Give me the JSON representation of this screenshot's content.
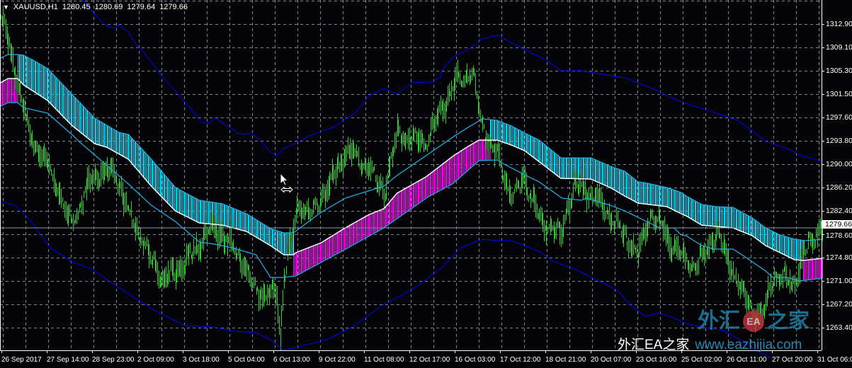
{
  "header": {
    "menu_icon": "triangle-down-icon",
    "symbol": "XAUUSD,H1",
    "open": "1280.45",
    "high": "1280.69",
    "low": "1279.64",
    "close": "1279.66"
  },
  "price_axis": {
    "labels": [
      "1312.90",
      "1309.10",
      "1305.30",
      "1301.50",
      "1297.60",
      "1293.80",
      "1290.00",
      "1286.20",
      "1282.40",
      "1278.60",
      "1274.80",
      "1271.00",
      "1267.20",
      "1263.40"
    ],
    "current_price": "1279.66"
  },
  "time_axis": {
    "labels": [
      "26 Sep 2017",
      "27 Sep 14:00",
      "28 Sep 23:00",
      "2 Oct 09:00",
      "3 Oct 18:00",
      "5 Oct 04:00",
      "6 Oct 13:00",
      "9 Oct 22:00",
      "11 Oct 08:00",
      "12 Oct 17:00",
      "16 Oct 03:00",
      "17 Oct 12:00",
      "18 Oct 21:00",
      "20 Oct 07:00",
      "23 Oct 16:00",
      "25 Oct 02:00",
      "26 Oct 11:00",
      "27 Oct 20:00",
      "31 Oct 06:00"
    ]
  },
  "watermark": {
    "logo_left": "外汇",
    "logo_badge": "EA",
    "logo_right": "之家",
    "line_cn": "外汇EA之家",
    "line_url": "www.eazhijia.com"
  },
  "colors": {
    "background": "#050508",
    "bars": "#32cd32",
    "band_down_fill": "#00e0ff",
    "band_up_fill": "#ff00ff",
    "band_mid": "#ffffff",
    "band_edge": "#1eb4f0",
    "envelope": "#0000ff",
    "grid": "#778899",
    "price_line": "#8899aa"
  },
  "chart_data": {
    "type": "ohlc-bar",
    "symbol": "XAUUSD",
    "timeframe": "H1",
    "bar_count": 683,
    "ylim": [
      1259.5,
      1316.8
    ],
    "grid": true,
    "last_close": 1279.66,
    "price_path": [
      [
        0,
        1313.4
      ],
      [
        3,
        1312.5
      ],
      [
        9,
        1307.6
      ],
      [
        24,
        1294.9
      ],
      [
        41,
        1289.2
      ],
      [
        59,
        1280
      ],
      [
        76,
        1288
      ],
      [
        94,
        1289.2
      ],
      [
        106,
        1282.3
      ],
      [
        135,
        1270.8
      ],
      [
        153,
        1274.2
      ],
      [
        176,
        1280
      ],
      [
        194,
        1276.5
      ],
      [
        212,
        1269.6
      ],
      [
        229,
        1268.5
      ],
      [
        232,
        1262
      ],
      [
        235,
        1272
      ],
      [
        247,
        1283.4
      ],
      [
        259,
        1282.3
      ],
      [
        276,
        1288
      ],
      [
        288,
        1292.6
      ],
      [
        306,
        1289.2
      ],
      [
        318,
        1285.7
      ],
      [
        329,
        1294.9
      ],
      [
        353,
        1293.8
      ],
      [
        365,
        1298.4
      ],
      [
        376,
        1303
      ],
      [
        391,
        1305.3
      ],
      [
        400,
        1296.1
      ],
      [
        412,
        1291.5
      ],
      [
        424,
        1284.6
      ],
      [
        435,
        1288
      ],
      [
        447,
        1281.1
      ],
      [
        465,
        1278.8
      ],
      [
        476,
        1286.9
      ],
      [
        494,
        1284.6
      ],
      [
        512,
        1280
      ],
      [
        529,
        1275.4
      ],
      [
        541,
        1282.3
      ],
      [
        559,
        1276.5
      ],
      [
        576,
        1273.1
      ],
      [
        594,
        1278.8
      ],
      [
        612,
        1270.8
      ],
      [
        624,
        1266.1
      ],
      [
        632,
        1265
      ],
      [
        641,
        1271.9
      ],
      [
        659,
        1270.8
      ],
      [
        671,
        1277.7
      ],
      [
        682,
        1279.66
      ]
    ],
    "band_upper": [
      [
        0,
        1307.37
      ],
      [
        6,
        1307.95
      ],
      [
        14,
        1307.95
      ],
      [
        19,
        1307.83
      ],
      [
        29,
        1306.8
      ],
      [
        39,
        1305.65
      ],
      [
        59,
        1301.5
      ],
      [
        78,
        1297.58
      ],
      [
        98,
        1295.28
      ],
      [
        106,
        1294.94
      ],
      [
        125,
        1290.91
      ],
      [
        145,
        1286.3
      ],
      [
        165,
        1284.23
      ],
      [
        184,
        1283.65
      ],
      [
        204,
        1282.04
      ],
      [
        224,
        1279.62
      ],
      [
        235,
        1278.93
      ],
      [
        243,
        1278.93
      ],
      [
        266,
        1282.27
      ],
      [
        286,
        1284.57
      ],
      [
        318,
        1286.53
      ],
      [
        329,
        1288.26
      ],
      [
        353,
        1291.48
      ],
      [
        376,
        1294.59
      ],
      [
        388,
        1296.09
      ],
      [
        400,
        1297.47
      ],
      [
        412,
        1297.24
      ],
      [
        424,
        1296.32
      ],
      [
        435,
        1295.17
      ],
      [
        447,
        1294.02
      ],
      [
        465,
        1291.13
      ],
      [
        490,
        1291.13
      ],
      [
        506,
        1289.76
      ],
      [
        518,
        1288.95
      ],
      [
        529,
        1287.22
      ],
      [
        534,
        1287.11
      ],
      [
        553,
        1286.3
      ],
      [
        565,
        1285.49
      ],
      [
        569,
        1284.92
      ],
      [
        582,
        1283.54
      ],
      [
        594,
        1283.19
      ],
      [
        608,
        1283.07
      ],
      [
        624,
        1281.34
      ],
      [
        635,
        1279.73
      ],
      [
        647,
        1278.57
      ],
      [
        659,
        1277.89
      ],
      [
        668,
        1277.66
      ],
      [
        682,
        1277.89
      ]
    ],
    "band_mid": [
      [
        0,
        1303.34
      ],
      [
        6,
        1304.03
      ],
      [
        14,
        1304.03
      ],
      [
        19,
        1303.0
      ],
      [
        39,
        1300.46
      ],
      [
        59,
        1296.43
      ],
      [
        78,
        1293.44
      ],
      [
        88,
        1292.86
      ],
      [
        106,
        1290.91
      ],
      [
        125,
        1286.53
      ],
      [
        145,
        1282.5
      ],
      [
        165,
        1280.54
      ],
      [
        184,
        1280.19
      ],
      [
        204,
        1279.16
      ],
      [
        224,
        1276.85
      ],
      [
        235,
        1275.36
      ],
      [
        243,
        1275.36
      ],
      [
        245,
        1275.7
      ],
      [
        266,
        1277.31
      ],
      [
        286,
        1279.73
      ],
      [
        306,
        1281.92
      ],
      [
        318,
        1282.85
      ],
      [
        329,
        1285.38
      ],
      [
        353,
        1288.03
      ],
      [
        376,
        1291.48
      ],
      [
        388,
        1292.98
      ],
      [
        397,
        1294.02
      ],
      [
        412,
        1294.02
      ],
      [
        424,
        1293.21
      ],
      [
        435,
        1292.29
      ],
      [
        447,
        1290.5
      ],
      [
        465,
        1287.8
      ],
      [
        490,
        1287.68
      ],
      [
        506,
        1286.3
      ],
      [
        518,
        1284.92
      ],
      [
        529,
        1283.77
      ],
      [
        553,
        1283.19
      ],
      [
        565,
        1282.04
      ],
      [
        569,
        1281.69
      ],
      [
        582,
        1280.19
      ],
      [
        608,
        1279.73
      ],
      [
        624,
        1278.46
      ],
      [
        635,
        1276.85
      ],
      [
        659,
        1274.55
      ],
      [
        666,
        1274.44
      ],
      [
        682,
        1274.78
      ]
    ],
    "band_lower": [
      [
        0,
        1299.54
      ],
      [
        6,
        1300.12
      ],
      [
        14,
        1300.12
      ],
      [
        19,
        1299.31
      ],
      [
        39,
        1298.39
      ],
      [
        59,
        1294.94
      ],
      [
        65,
        1293.8
      ],
      [
        106,
        1286.88
      ],
      [
        125,
        1283.42
      ],
      [
        145,
        1280.77
      ],
      [
        165,
        1277.43
      ],
      [
        178,
        1277.08
      ],
      [
        192,
        1276.5
      ],
      [
        212,
        1275.36
      ],
      [
        224,
        1271.67
      ],
      [
        234,
        1271.67
      ],
      [
        245,
        1271.91
      ],
      [
        282,
        1275.82
      ],
      [
        318,
        1279.73
      ],
      [
        355,
        1284.8
      ],
      [
        375,
        1286.88
      ],
      [
        397,
        1290.67
      ],
      [
        412,
        1290.79
      ],
      [
        419,
        1289.99
      ],
      [
        435,
        1288.37
      ],
      [
        447,
        1287.22
      ],
      [
        466,
        1284.57
      ],
      [
        482,
        1284.23
      ],
      [
        486,
        1284.57
      ],
      [
        506,
        1283.42
      ],
      [
        518,
        1282.5
      ],
      [
        529,
        1281.46
      ],
      [
        547,
        1279.73
      ],
      [
        559,
        1279.73
      ],
      [
        565,
        1278.57
      ],
      [
        569,
        1278.46
      ],
      [
        582,
        1276.85
      ],
      [
        592,
        1276.28
      ],
      [
        608,
        1276.28
      ],
      [
        618,
        1275.01
      ],
      [
        635,
        1272.71
      ],
      [
        641,
        1271.67
      ],
      [
        653,
        1271.67
      ],
      [
        663,
        1271.1
      ],
      [
        682,
        1271.56
      ]
    ],
    "band_trend": [
      {
        "from": 0,
        "to": 14,
        "dir": "up"
      },
      {
        "from": 14,
        "to": 243,
        "dir": "down"
      },
      {
        "from": 243,
        "to": 406,
        "dir": "up"
      },
      {
        "from": 406,
        "to": 666,
        "dir": "down"
      },
      {
        "from": 666,
        "to": 682,
        "dir": "up"
      }
    ],
    "envelope_upper": [
      [
        68,
        1316.82
      ],
      [
        78,
        1314.51
      ],
      [
        86,
        1312.79
      ],
      [
        94,
        1312.21
      ],
      [
        98,
        1312.79
      ],
      [
        106,
        1311.63
      ],
      [
        114,
        1309.1
      ],
      [
        118,
        1308.52
      ],
      [
        135,
        1304.15
      ],
      [
        156,
        1299.54
      ],
      [
        166,
        1297.01
      ],
      [
        172,
        1296.66
      ],
      [
        178,
        1297.58
      ],
      [
        192,
        1295.86
      ],
      [
        196,
        1295.17
      ],
      [
        202,
        1294.94
      ],
      [
        206,
        1295.17
      ],
      [
        212,
        1294.59
      ],
      [
        224,
        1292.06
      ],
      [
        229,
        1291.48
      ],
      [
        235,
        1292.63
      ],
      [
        247,
        1293.79
      ],
      [
        259,
        1294.94
      ],
      [
        276,
        1296.09
      ],
      [
        294,
        1298.39
      ],
      [
        306,
        1301.27
      ],
      [
        318,
        1302.42
      ],
      [
        329,
        1301.5
      ],
      [
        341,
        1303.34
      ],
      [
        357,
        1303.46
      ],
      [
        365,
        1304.15
      ],
      [
        366,
        1305.3
      ],
      [
        376,
        1307.6
      ],
      [
        388,
        1308.75
      ],
      [
        400,
        1310.48
      ],
      [
        412,
        1311.06
      ],
      [
        418,
        1310.48
      ],
      [
        435,
        1308.75
      ],
      [
        453,
        1307.03
      ],
      [
        465,
        1305.3
      ],
      [
        482,
        1305.3
      ],
      [
        500,
        1304.72
      ],
      [
        518,
        1304.15
      ],
      [
        541,
        1302.42
      ],
      [
        559,
        1300.69
      ],
      [
        576,
        1299.54
      ],
      [
        594,
        1298.39
      ],
      [
        612,
        1297.24
      ],
      [
        624,
        1295.51
      ],
      [
        635,
        1293.79
      ],
      [
        653,
        1292.63
      ],
      [
        665,
        1291.48
      ],
      [
        682,
        1290.56
      ]
    ],
    "envelope_lower": [
      [
        0,
        1284.0
      ],
      [
        12,
        1283.42
      ],
      [
        24,
        1281.11
      ],
      [
        41,
        1276.51
      ],
      [
        59,
        1274.21
      ],
      [
        76,
        1273.06
      ],
      [
        88,
        1271.33
      ],
      [
        106,
        1269.03
      ],
      [
        129,
        1266.15
      ],
      [
        153,
        1263.85
      ],
      [
        176,
        1263.62
      ],
      [
        194,
        1262.93
      ],
      [
        212,
        1262.7
      ],
      [
        224,
        1261.54
      ],
      [
        235,
        1259.81
      ],
      [
        247,
        1260.39
      ],
      [
        271,
        1261.54
      ],
      [
        294,
        1263.85
      ],
      [
        318,
        1267.3
      ],
      [
        341,
        1269.6
      ],
      [
        365,
        1273.06
      ],
      [
        382,
        1276.51
      ],
      [
        400,
        1277.89
      ],
      [
        412,
        1277.66
      ],
      [
        424,
        1277.66
      ],
      [
        447,
        1275.93
      ],
      [
        459,
        1274.21
      ],
      [
        476,
        1273.06
      ],
      [
        494,
        1271.33
      ],
      [
        512,
        1269.6
      ],
      [
        522,
        1267.3
      ],
      [
        535,
        1265.34
      ],
      [
        547,
        1265.92
      ],
      [
        557,
        1265.23
      ],
      [
        569,
        1264.19
      ],
      [
        581,
        1263.62
      ],
      [
        600,
        1263.04
      ],
      [
        614,
        1261.54
      ],
      [
        624,
        1260.16
      ],
      [
        640,
        1258.5
      ]
    ]
  }
}
